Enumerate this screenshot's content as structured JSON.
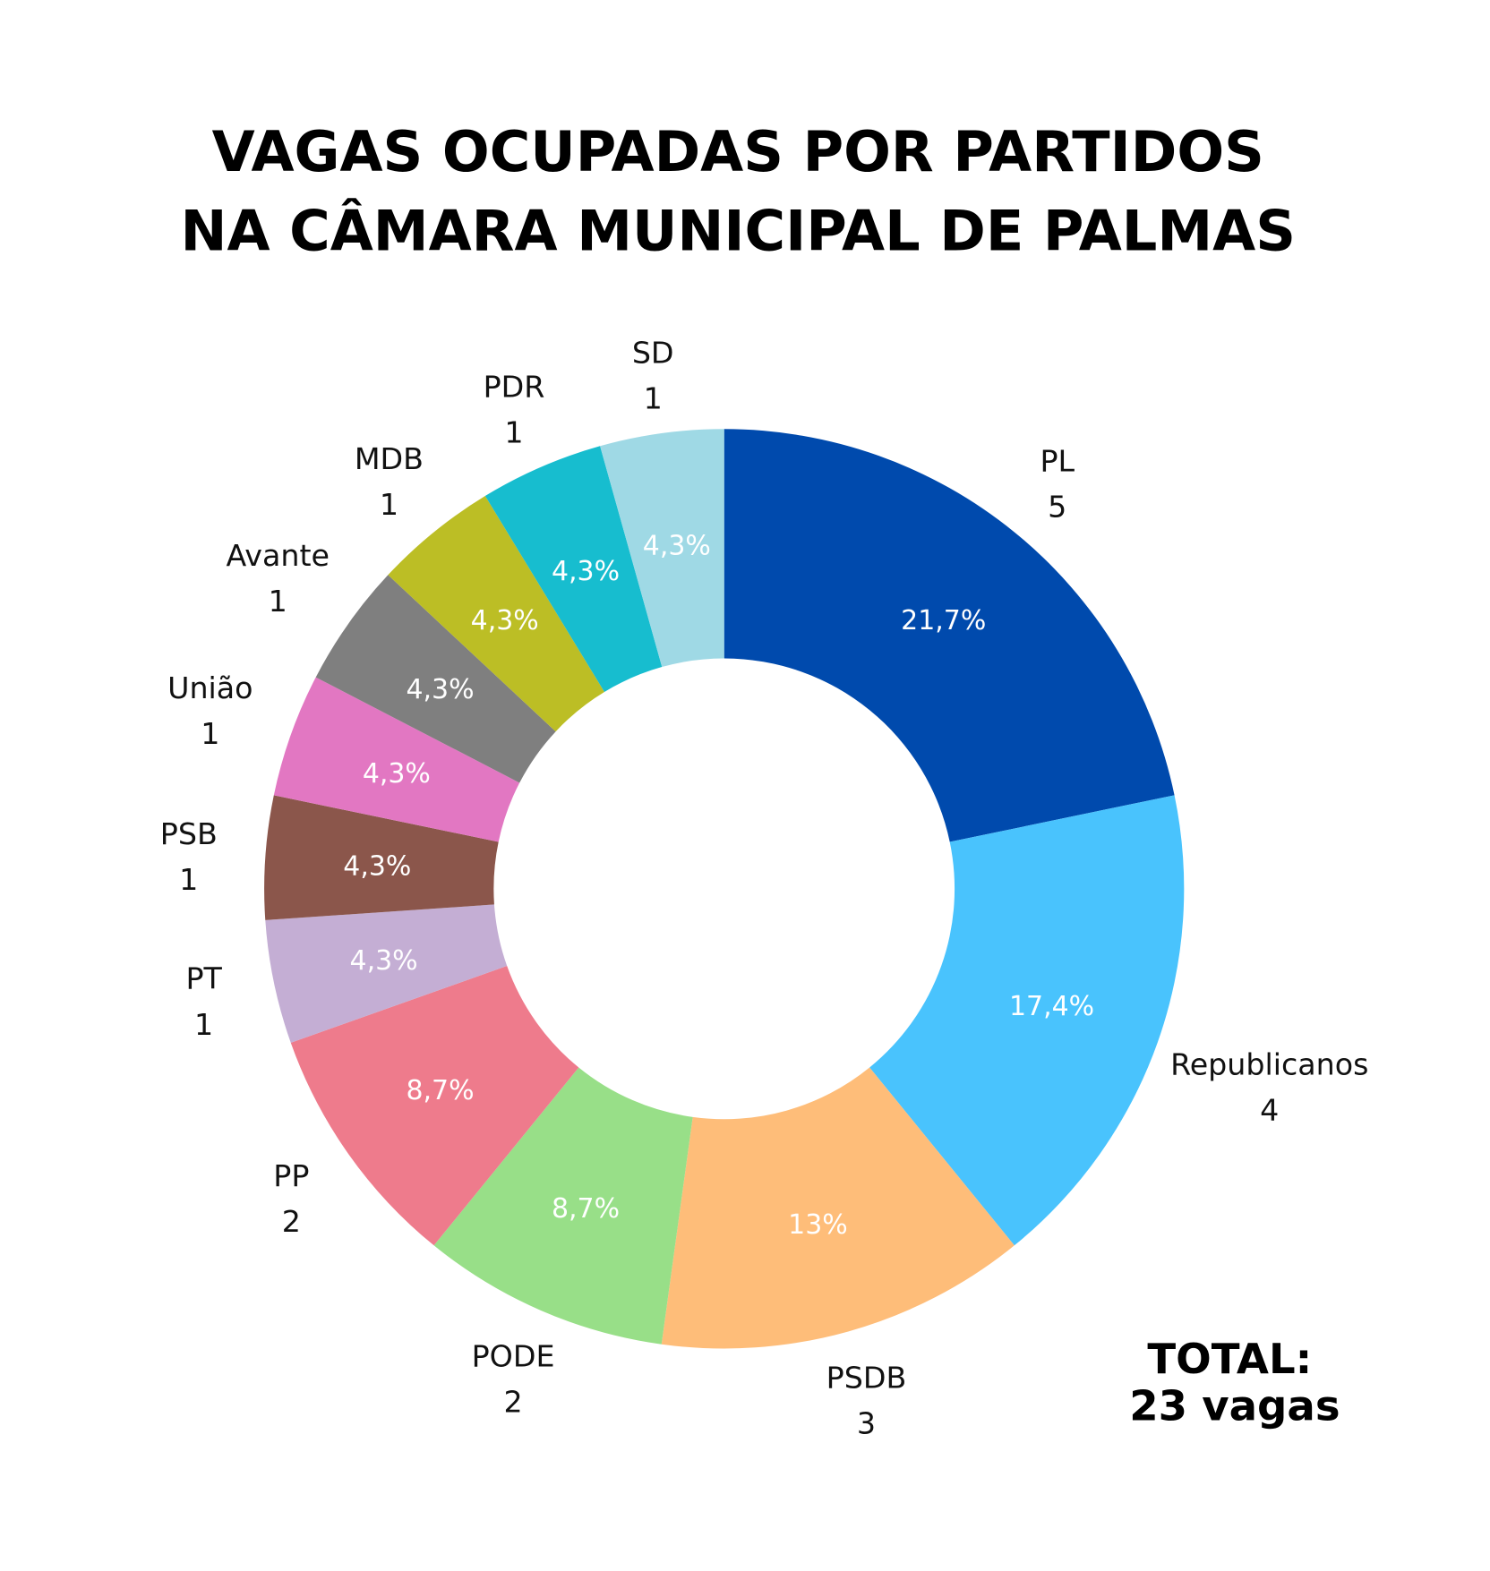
{
  "chart_data": {
    "type": "pie",
    "subtype": "donut",
    "title_lines": [
      "VAGAS OCUPADAS POR PARTIDOS",
      "NA CÂMARA MUNICIPAL DE PALMAS"
    ],
    "slices": [
      {
        "name": "PL",
        "value": 5,
        "pct": "21,7%",
        "color": "#004aad"
      },
      {
        "name": "Republicanos",
        "value": 4,
        "pct": "17,4%",
        "color": "#49c3fd"
      },
      {
        "name": "PSDB",
        "value": 3,
        "pct": "13%",
        "color": "#febd79"
      },
      {
        "name": "PODE",
        "value": 2,
        "pct": "8,7%",
        "color": "#98df88"
      },
      {
        "name": "PP",
        "value": 2,
        "pct": "8,7%",
        "color": "#ee7b8c"
      },
      {
        "name": "PT",
        "value": 1,
        "pct": "4,3%",
        "color": "#c4aed4"
      },
      {
        "name": "PSB",
        "value": 1,
        "pct": "4,3%",
        "color": "#8b564b"
      },
      {
        "name": "União",
        "value": 1,
        "pct": "4,3%",
        "color": "#e277c2"
      },
      {
        "name": "Avante",
        "value": 1,
        "pct": "4,3%",
        "color": "#7f7f7f"
      },
      {
        "name": "MDB",
        "value": 1,
        "pct": "4,3%",
        "color": "#bcbe25"
      },
      {
        "name": "PDR",
        "value": 1,
        "pct": "4,3%",
        "color": "#17bdcf"
      },
      {
        "name": "SD",
        "value": 1,
        "pct": "4,3%",
        "color": "#9fd9e5"
      }
    ],
    "total_lines": [
      "TOTAL:",
      "23 vagas"
    ]
  }
}
